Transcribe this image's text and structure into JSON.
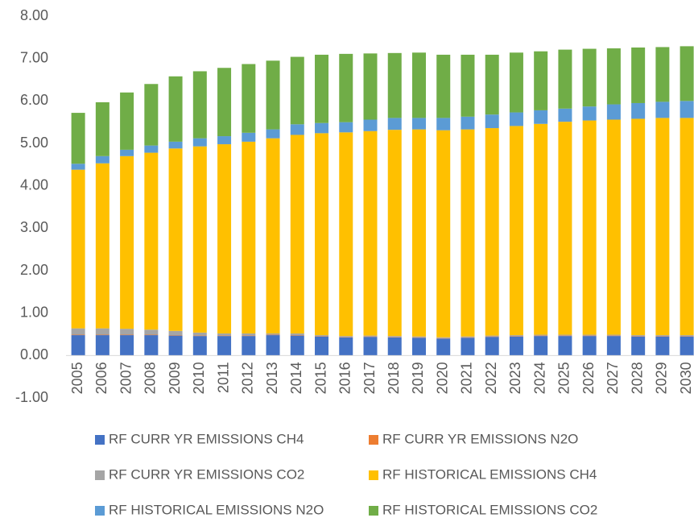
{
  "chart_data": {
    "type": "stacked_bar",
    "categories": [
      "2005",
      "2006",
      "2007",
      "2008",
      "2009",
      "2010",
      "2011",
      "2012",
      "2013",
      "2014",
      "2015",
      "2016",
      "2017",
      "2018",
      "2019",
      "2020",
      "2021",
      "2022",
      "2023",
      "2024",
      "2025",
      "2026",
      "2027",
      "2028",
      "2029",
      "2030"
    ],
    "series": [
      {
        "name": "RF CURR YR EMISSIONS CH4",
        "color": "#4472c4",
        "values": [
          0.48,
          0.48,
          0.48,
          0.48,
          0.47,
          0.46,
          0.46,
          0.46,
          0.48,
          0.47,
          0.45,
          0.43,
          0.44,
          0.43,
          0.42,
          0.4,
          0.42,
          0.44,
          0.45,
          0.46,
          0.46,
          0.46,
          0.46,
          0.45,
          0.45,
          0.45
        ]
      },
      {
        "name": "RF CURR YR EMISSIONS N2O",
        "color": "#ed7d31",
        "values": [
          0.01,
          0.01,
          0.01,
          0.01,
          0.01,
          0.01,
          0.01,
          0.01,
          0.01,
          0.01,
          0.01,
          0.01,
          0.01,
          0.01,
          0.01,
          0.01,
          0.01,
          0.01,
          0.01,
          0.01,
          0.01,
          0.01,
          0.01,
          0.01,
          0.01,
          0.01
        ]
      },
      {
        "name": "RF CURR YR EMISSIONS CO2",
        "color": "#a5a5a5",
        "values": [
          0.15,
          0.15,
          0.14,
          0.12,
          0.1,
          0.07,
          0.05,
          0.05,
          0.03,
          0.04,
          0.02,
          0.02,
          0.02,
          0.02,
          0.02,
          0.02,
          0.02,
          0.02,
          0.02,
          0.02,
          0.02,
          0.02,
          0.02,
          0.02,
          0.02,
          0.02
        ]
      },
      {
        "name": "RF HISTORICAL EMISSIONS CH4",
        "color": "#ffc000",
        "values": [
          3.74,
          3.89,
          4.07,
          4.17,
          4.3,
          4.39,
          4.46,
          4.52,
          4.6,
          4.68,
          4.76,
          4.8,
          4.82,
          4.86,
          4.88,
          4.88,
          4.88,
          4.89,
          4.93,
          4.97,
          5.02,
          5.05,
          5.07,
          5.1,
          5.12,
          5.12
        ]
      },
      {
        "name": "RF HISTORICAL EMISSIONS N2O",
        "color": "#5b9bd5",
        "values": [
          0.14,
          0.17,
          0.15,
          0.17,
          0.16,
          0.19,
          0.19,
          0.21,
          0.21,
          0.25,
          0.24,
          0.24,
          0.27,
          0.28,
          0.27,
          0.29,
          0.3,
          0.32,
          0.32,
          0.32,
          0.31,
          0.33,
          0.36,
          0.37,
          0.38,
          0.4
        ]
      },
      {
        "name": "RF HISTORICAL EMISSIONS CO2",
        "color": "#70ad47",
        "values": [
          1.2,
          1.27,
          1.35,
          1.45,
          1.54,
          1.58,
          1.61,
          1.62,
          1.62,
          1.59,
          1.61,
          1.61,
          1.56,
          1.53,
          1.54,
          1.49,
          1.46,
          1.41,
          1.41,
          1.39,
          1.39,
          1.36,
          1.32,
          1.31,
          1.29,
          1.29
        ]
      }
    ],
    "ylim": [
      -1,
      8
    ],
    "yticks": [
      {
        "value": -1,
        "label": "-1.00"
      },
      {
        "value": 0,
        "label": "0.00"
      },
      {
        "value": 1,
        "label": "1.00"
      },
      {
        "value": 2,
        "label": "2.00"
      },
      {
        "value": 3,
        "label": "3.00"
      },
      {
        "value": 4,
        "label": "4.00"
      },
      {
        "value": 5,
        "label": "5.00"
      },
      {
        "value": 6,
        "label": "6.00"
      },
      {
        "value": 7,
        "label": "7.00"
      },
      {
        "value": 8,
        "label": "8.00"
      }
    ],
    "grid": false,
    "legend": "bottom"
  }
}
